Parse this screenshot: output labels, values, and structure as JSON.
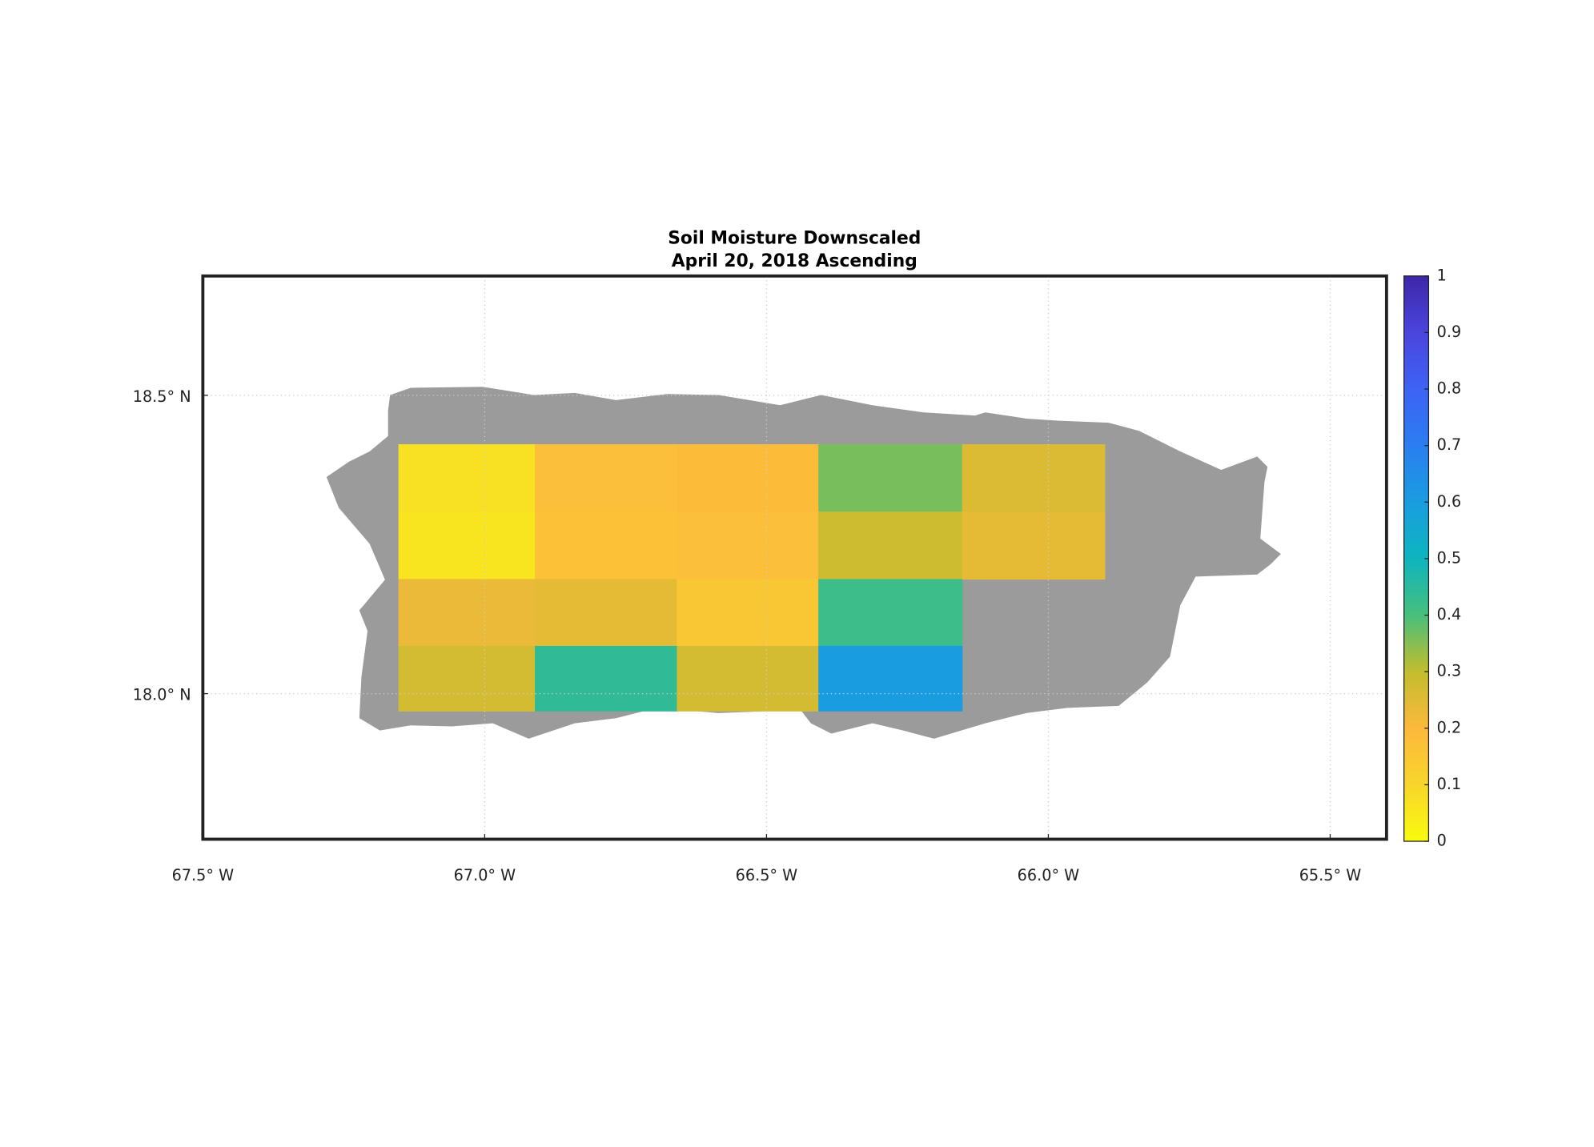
{
  "chart_data": {
    "type": "grid-map",
    "title": [
      "Soil Moisture Downscaled",
      "April 20, 2018 Ascending"
    ],
    "xlim": [
      -67.5,
      -65.4
    ],
    "ylim": [
      17.756,
      18.7
    ],
    "xticks": [
      {
        "value": -67.5,
        "label": "67.5° W"
      },
      {
        "value": -67.0,
        "label": "67.0° W"
      },
      {
        "value": -66.5,
        "label": "66.5° W"
      },
      {
        "value": -66.0,
        "label": "66.0° W"
      },
      {
        "value": -65.5,
        "label": "65.5° W"
      }
    ],
    "yticks": [
      {
        "value": 18.0,
        "label": "18.0° N"
      },
      {
        "value": 18.5,
        "label": "18.5° N"
      }
    ],
    "grid": true,
    "lon_edges": [
      -67.153,
      -66.911,
      -66.659,
      -66.408,
      -66.153,
      -65.9
    ],
    "lat_edges": [
      18.418,
      18.305,
      18.192,
      18.08,
      17.971
    ],
    "values": [
      [
        0.07,
        0.18,
        0.19,
        0.36,
        0.26
      ],
      [
        0.06,
        0.17,
        0.18,
        0.28,
        0.24
      ],
      [
        0.23,
        0.24,
        0.15,
        0.42,
        null
      ],
      [
        0.27,
        0.44,
        0.27,
        0.6,
        null
      ]
    ],
    "clim": [
      0,
      1
    ],
    "cbar_ticks": [
      0,
      0.1,
      0.2,
      0.3,
      0.4,
      0.5,
      0.6,
      0.7,
      0.8,
      0.9,
      1
    ],
    "colormap": [
      "#f9fb0e",
      "#f8d52b",
      "#fcb93c",
      "#c3bd2d",
      "#48bf7b",
      "#0db5bf",
      "#1a9de0",
      "#2a7ef0",
      "#3d63f5",
      "#4a45dd",
      "#3e26a8"
    ],
    "land_color": "#9b9b9b"
  }
}
